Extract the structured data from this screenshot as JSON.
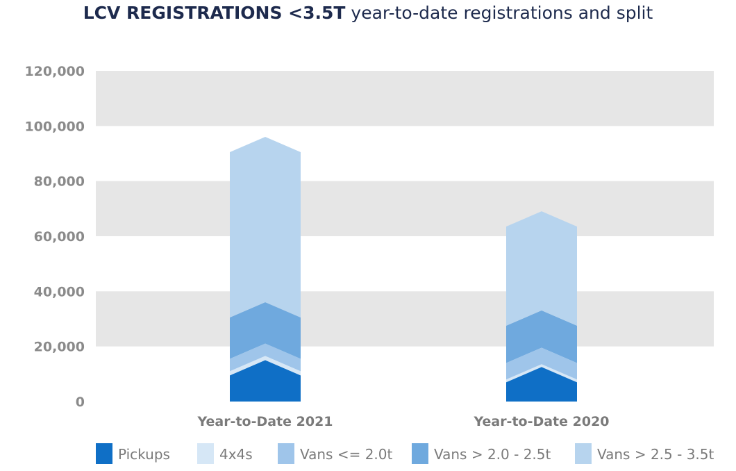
{
  "title": {
    "bold": "LCV REGISTRATIONS <3.5T",
    "rest": " year-to-date registrations and split"
  },
  "chart_data": {
    "type": "bar",
    "stacked": true,
    "title": "LCV REGISTRATIONS <3.5T year-to-date registrations and split",
    "categories": [
      "Year-to-Date 2021",
      "Year-to-Date 2020"
    ],
    "series": [
      {
        "name": "Pickups",
        "color": "#0f6fc6",
        "values": [
          9500,
          7000
        ]
      },
      {
        "name": "4x4s",
        "color": "#d6e7f6",
        "values": [
          1500,
          1000
        ]
      },
      {
        "name": "Vans <= 2.0t",
        "color": "#9fc5ea",
        "values": [
          4500,
          6000
        ]
      },
      {
        "name": "Vans > 2.0 - 2.5t",
        "color": "#6fa9de",
        "values": [
          15000,
          13500
        ]
      },
      {
        "name": "Vans > 2.5 - 3.5t",
        "color": "#b7d4ee",
        "values": [
          60000,
          36000
        ]
      }
    ],
    "ylim": [
      0,
      120000
    ],
    "yticks": [
      "0",
      "20,000",
      "40,000",
      "60,000",
      "80,000",
      "100,000",
      "120,000"
    ],
    "grid": "alternating horizontal bands",
    "legend_position": "bottom"
  }
}
